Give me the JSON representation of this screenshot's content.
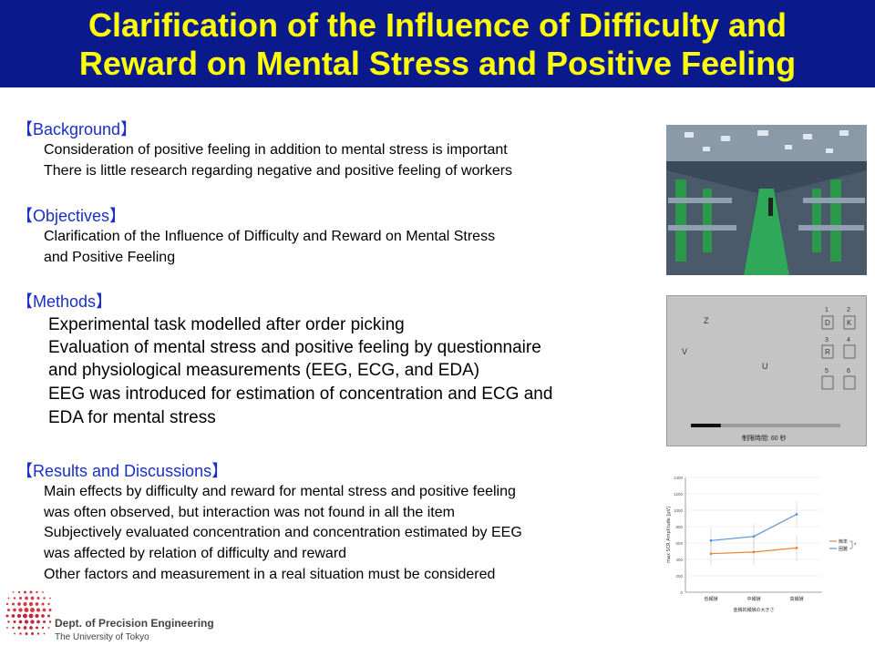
{
  "title": {
    "line1": "Clarification of the Influence of Difficulty and",
    "line2": "Reward on Mental Stress and Positive Feeling"
  },
  "sections": {
    "background": {
      "heading": "【Background】",
      "items": [
        "Consideration of positive feeling in addition to mental stress is important",
        "There is little research regarding negative and positive feeling of workers"
      ]
    },
    "objectives": {
      "heading": "【Objectives】",
      "items": [
        "Clarification of the Influence of Difficulty and Reward on Mental Stress",
        "and Positive Feeling"
      ]
    },
    "methods": {
      "heading": "【Methods】",
      "items": [
        "Experimental task modelled after order picking",
        "Evaluation of mental stress and positive feeling by questionnaire",
        "and physiological measurements (EEG, ECG, and EDA)",
        "EEG was introduced for estimation of concentration and ECG and",
        "EDA for mental stress"
      ]
    },
    "results": {
      "heading": "【Results and Discussions】",
      "items": [
        "Main effects by difficulty and reward for mental stress and positive feeling",
        "was often observed, but interaction was not found in all the item",
        "Subjectively evaluated concentration and concentration estimated by EEG",
        "was affected by relation of difficulty and reward",
        "Other factors and measurement in a real situation must be considered"
      ]
    }
  },
  "task_screen": {
    "letters": [
      "Z",
      "V",
      "U"
    ],
    "slots": [
      {
        "num": "1",
        "letter": "D"
      },
      {
        "num": "2",
        "letter": "K"
      },
      {
        "num": "3",
        "letter": "R"
      },
      {
        "num": "4",
        "letter": ""
      },
      {
        "num": "5",
        "letter": ""
      },
      {
        "num": "6",
        "letter": ""
      }
    ],
    "time_label": "制限時間: 60 秒",
    "time_remaining_fraction": 0.2
  },
  "chart_data": {
    "type": "line",
    "categories": [
      "低報酬",
      "中報酬",
      "高報酬"
    ],
    "xlabel": "金銭的報酬の大きさ",
    "ylabel": "max SCR Amplitude [μV]",
    "ylim": [
      0,
      1400
    ],
    "yticks": [
      0,
      200,
      400,
      600,
      800,
      1000,
      1200,
      1400
    ],
    "series": [
      {
        "name": "簡単",
        "color": "#f08030",
        "values": [
          470,
          490,
          540
        ]
      },
      {
        "name": "困難",
        "color": "#5b8fd8",
        "values": [
          630,
          680,
          950
        ]
      }
    ],
    "significance": "*"
  },
  "logo": {
    "line1": "Dept. of Precision Engineering",
    "line2": "The University of Tokyo"
  },
  "colors": {
    "title_bg": "#0a1a8c",
    "title_text": "#ffff00",
    "heading_text": "#1a2fc8"
  }
}
